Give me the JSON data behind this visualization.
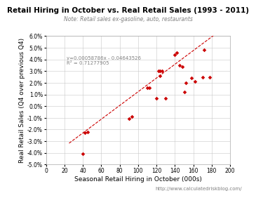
{
  "title": "Retail Hiring in October vs. Real Retail Sales (1993 - 2011)",
  "subtitle": "Note: Retail sales ex-gasoline, auto, restaurants",
  "xlabel": "Seasonal Retail Hiring in October (000s)",
  "ylabel": "Real Retail Sales (Q4 over previous Q4)",
  "url_text": "http://www.calculatedriskblog.com/",
  "equation": "y=0.00058786x - 0.04643526",
  "r2": "R² = 0.71277905",
  "xlim": [
    0,
    200
  ],
  "ylim": [
    -0.05,
    0.06
  ],
  "xticks": [
    0,
    20,
    40,
    60,
    80,
    100,
    120,
    140,
    160,
    180,
    200
  ],
  "yticks": [
    -0.05,
    -0.04,
    -0.03,
    -0.02,
    -0.01,
    0.0,
    0.01,
    0.02,
    0.03,
    0.04,
    0.05,
    0.06
  ],
  "scatter_x": [
    40,
    42,
    45,
    90,
    93,
    110,
    112,
    120,
    122,
    124,
    124,
    126,
    130,
    140,
    142,
    145,
    148,
    150,
    152,
    158,
    162,
    170,
    172,
    178
  ],
  "scatter_y": [
    -0.041,
    -0.023,
    -0.022,
    -0.011,
    -0.009,
    0.016,
    0.016,
    0.007,
    0.03,
    0.03,
    0.026,
    0.03,
    0.007,
    0.044,
    0.046,
    0.035,
    0.034,
    0.012,
    0.02,
    0.024,
    0.021,
    0.025,
    0.048,
    0.025
  ],
  "slope": 0.00058786,
  "intercept": -0.04643526,
  "trendline_x": [
    25,
    185
  ],
  "marker_color": "#cc0000",
  "trendline_color": "#cc0000",
  "bg_color": "#ffffff",
  "grid_color": "#c8c8c8",
  "title_fontsize": 7.5,
  "subtitle_fontsize": 5.5,
  "axis_label_fontsize": 6.5,
  "tick_fontsize": 5.5,
  "annot_fontsize": 5.0,
  "url_fontsize": 5.0,
  "marker_size": 8
}
